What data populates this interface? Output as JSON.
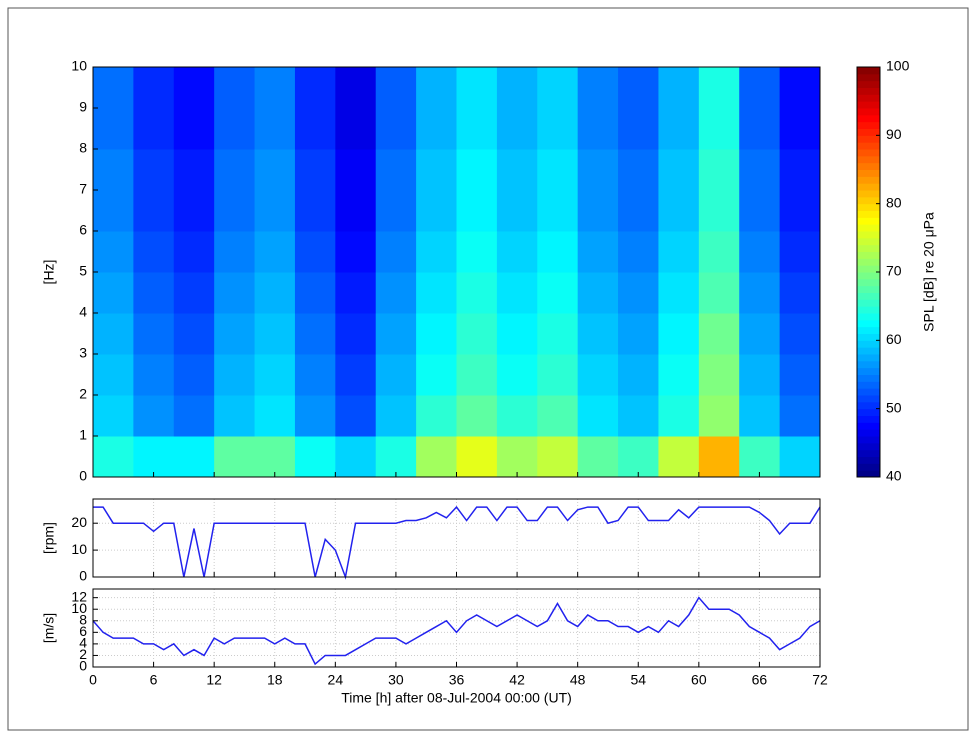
{
  "chart_data": [
    {
      "type": "heatmap",
      "ylabel": "[Hz]",
      "colorbar_label": "SPL [dB] re 20 μPa",
      "colormap": "jet",
      "xlim": [
        0,
        72
      ],
      "ylim": [
        0,
        10
      ],
      "yticks": [
        0,
        1,
        2,
        3,
        4,
        5,
        6,
        7,
        8,
        9,
        10
      ],
      "xticks": [
        0,
        6,
        12,
        18,
        24,
        30,
        36,
        42,
        48,
        54,
        60,
        66,
        72
      ],
      "show_xtick_labels": false,
      "clim": [
        40,
        100
      ],
      "cticks": [
        40,
        50,
        60,
        70,
        80,
        90,
        100
      ],
      "xbins": [
        0,
        4,
        8,
        12,
        16,
        20,
        24,
        28,
        32,
        36,
        40,
        44,
        48,
        52,
        56,
        60,
        64,
        68,
        72
      ],
      "ybins": [
        0,
        1,
        2,
        3,
        4,
        5,
        6,
        7,
        8,
        9,
        10
      ],
      "z": [
        [
          64,
          62,
          62,
          68,
          68,
          63,
          60,
          64,
          72,
          76,
          72,
          74,
          68,
          66,
          74,
          82,
          66,
          60
        ],
        [
          60,
          56,
          54,
          59,
          61,
          56,
          52,
          59,
          65,
          68,
          65,
          67,
          61,
          59,
          64,
          71,
          59,
          54
        ],
        [
          59,
          55,
          53,
          58,
          60,
          55,
          51,
          58,
          63,
          66,
          63,
          65,
          60,
          58,
          63,
          70,
          58,
          53
        ],
        [
          58,
          54,
          52,
          57,
          59,
          54,
          50,
          57,
          62,
          65,
          62,
          64,
          59,
          57,
          62,
          69,
          57,
          52
        ],
        [
          57,
          53,
          51,
          56,
          58,
          53,
          49,
          56,
          61,
          64,
          61,
          63,
          58,
          56,
          61,
          67,
          56,
          51
        ],
        [
          56,
          52,
          50,
          55,
          57,
          52,
          48,
          55,
          60,
          63,
          60,
          62,
          57,
          55,
          60,
          66,
          55,
          50
        ],
        [
          55,
          51,
          49,
          54,
          56,
          51,
          47,
          54,
          59,
          62,
          59,
          61,
          56,
          54,
          59,
          65,
          54,
          49
        ],
        [
          55,
          51,
          49,
          54,
          56,
          51,
          47,
          54,
          59,
          62,
          59,
          61,
          56,
          54,
          59,
          65,
          54,
          49
        ],
        [
          54,
          50,
          48,
          53,
          55,
          50,
          46,
          53,
          58,
          61,
          58,
          60,
          55,
          53,
          58,
          64,
          53,
          48
        ],
        [
          54,
          50,
          48,
          53,
          55,
          50,
          46,
          53,
          58,
          61,
          58,
          60,
          55,
          53,
          58,
          64,
          53,
          48
        ]
      ]
    },
    {
      "type": "line",
      "ylabel": "[rpm]",
      "xlim": [
        0,
        72
      ],
      "ylim": [
        0,
        29
      ],
      "yticks": [
        0,
        10,
        20
      ],
      "xticks": [
        0,
        6,
        12,
        18,
        24,
        30,
        36,
        42,
        48,
        54,
        60,
        66,
        72
      ],
      "show_xtick_labels": false,
      "grid": true,
      "color": "#2222ee",
      "x": [
        0,
        1,
        2,
        3,
        4,
        5,
        6,
        7,
        8,
        9,
        10,
        11,
        12,
        13,
        14,
        15,
        16,
        17,
        18,
        19,
        20,
        21,
        22,
        23,
        24,
        25,
        26,
        27,
        28,
        29,
        30,
        31,
        32,
        33,
        34,
        35,
        36,
        37,
        38,
        39,
        40,
        41,
        42,
        43,
        44,
        45,
        46,
        47,
        48,
        49,
        50,
        51,
        52,
        53,
        54,
        55,
        56,
        57,
        58,
        59,
        60,
        61,
        62,
        63,
        64,
        65,
        66,
        67,
        68,
        69,
        70,
        71,
        72
      ],
      "values": [
        26,
        26,
        20,
        20,
        20,
        20,
        17,
        20,
        20,
        0,
        18,
        0,
        20,
        20,
        20,
        20,
        20,
        20,
        20,
        20,
        20,
        20,
        0,
        14,
        10,
        0,
        20,
        20,
        20,
        20,
        20,
        21,
        21,
        22,
        24,
        22,
        26,
        21,
        26,
        26,
        21,
        26,
        26,
        21,
        21,
        26,
        26,
        21,
        25,
        26,
        26,
        20,
        21,
        26,
        26,
        21,
        21,
        21,
        25,
        22,
        26,
        26,
        26,
        26,
        26,
        26,
        24,
        21,
        16,
        20,
        20,
        20,
        26
      ]
    },
    {
      "type": "line",
      "ylabel": "[m/s]",
      "xlabel": "Time [h] after 08-Jul-2004 00:00 (UT)",
      "xlim": [
        0,
        72
      ],
      "ylim": [
        0,
        13.5
      ],
      "yticks": [
        0,
        2,
        4,
        6,
        8,
        10,
        12
      ],
      "xticks": [
        0,
        6,
        12,
        18,
        24,
        30,
        36,
        42,
        48,
        54,
        60,
        66,
        72
      ],
      "show_xtick_labels": true,
      "grid": true,
      "color": "#2222ee",
      "x": [
        0,
        1,
        2,
        3,
        4,
        5,
        6,
        7,
        8,
        9,
        10,
        11,
        12,
        13,
        14,
        15,
        16,
        17,
        18,
        19,
        20,
        21,
        22,
        23,
        24,
        25,
        26,
        27,
        28,
        29,
        30,
        31,
        32,
        33,
        34,
        35,
        36,
        37,
        38,
        39,
        40,
        41,
        42,
        43,
        44,
        45,
        46,
        47,
        48,
        49,
        50,
        51,
        52,
        53,
        54,
        55,
        56,
        57,
        58,
        59,
        60,
        61,
        62,
        63,
        64,
        65,
        66,
        67,
        68,
        69,
        70,
        71,
        72
      ],
      "values": [
        8,
        6,
        5,
        5,
        5,
        4,
        4,
        3,
        4,
        2,
        3,
        2,
        5,
        4,
        5,
        5,
        5,
        5,
        4,
        5,
        4,
        4,
        0.5,
        2,
        2,
        2,
        3,
        4,
        5,
        5,
        5,
        4,
        5,
        6,
        7,
        8,
        6,
        8,
        9,
        8,
        7,
        8,
        9,
        8,
        7,
        8,
        11,
        8,
        7,
        9,
        8,
        8,
        7,
        7,
        6,
        7,
        6,
        8,
        7,
        9,
        12,
        10,
        10,
        10,
        9,
        7,
        6,
        5,
        3,
        4,
        5,
        7,
        8
      ]
    }
  ]
}
